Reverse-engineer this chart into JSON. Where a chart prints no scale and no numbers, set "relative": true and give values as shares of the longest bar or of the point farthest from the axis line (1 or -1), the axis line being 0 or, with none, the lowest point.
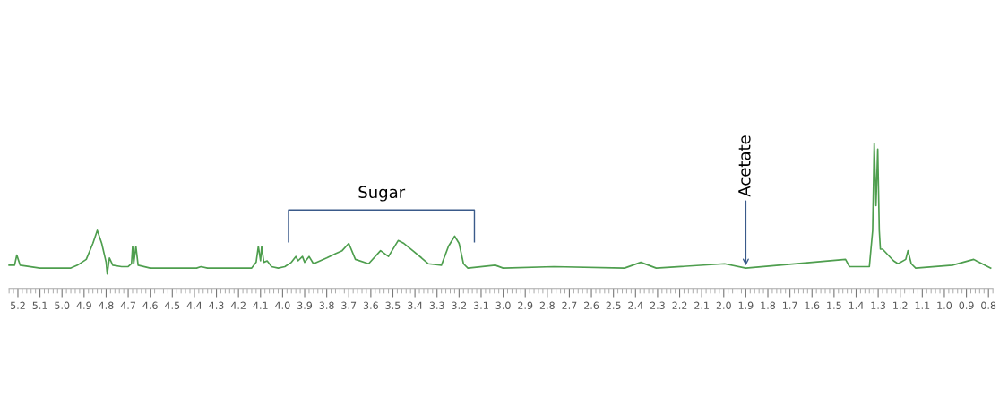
{
  "chart_data": {
    "type": "line",
    "relative": true,
    "xlim": [
      5.24,
      0.78
    ],
    "xticks": [
      5.2,
      5.1,
      {
        "value": 5,
        "label": "5.0"
      },
      4.9,
      4.8,
      4.7,
      4.6,
      4.5,
      4.4,
      4.3,
      4.2,
      4.1,
      {
        "value": 4,
        "label": "4.0"
      },
      3.9,
      3.8,
      3.7,
      3.6,
      3.5,
      3.4,
      3.3,
      3.2,
      3.1,
      {
        "value": 3,
        "label": "3.0"
      },
      2.9,
      2.8,
      2.7,
      2.6,
      2.5,
      2.4,
      2.3,
      2.2,
      2.1,
      {
        "value": 2,
        "label": "2.0"
      },
      1.9,
      1.8,
      1.7,
      1.6,
      1.5,
      1.4,
      1.3,
      1.2,
      1.1,
      {
        "value": 1,
        "label": "1.0"
      },
      0.9,
      0.8
    ],
    "grid": false,
    "legend": false,
    "marker": "none",
    "line_style": "solid",
    "series": [
      {
        "color": "#4e9e4e",
        "x": [
          5.24,
          5.215,
          5.205,
          5.19,
          5.1,
          4.96,
          4.93,
          4.89,
          4.86,
          4.84,
          4.82,
          4.8,
          4.795,
          4.785,
          4.77,
          4.73,
          4.7,
          4.685,
          4.68,
          4.675,
          4.665,
          4.655,
          4.6,
          4.39,
          4.37,
          4.34,
          4.14,
          4.12,
          4.11,
          4.1,
          4.095,
          4.085,
          4.07,
          4.05,
          4.02,
          3.99,
          3.96,
          3.94,
          3.93,
          3.91,
          3.9,
          3.88,
          3.86,
          3.8,
          3.76,
          3.73,
          3.7,
          3.67,
          3.61,
          3.556,
          3.52,
          3.476,
          3.45,
          3.41,
          3.37,
          3.34,
          3.28,
          3.248,
          3.22,
          3.2,
          3.18,
          3.16,
          3.036,
          3.0,
          2.77,
          2.45,
          2.376,
          2.306,
          1.996,
          1.9,
          1.448,
          1.43,
          1.34,
          1.325,
          1.318,
          1.31,
          1.302,
          1.295,
          1.29,
          1.28,
          1.23,
          1.21,
          1.175,
          1.165,
          1.15,
          1.13,
          0.964,
          0.867,
          0.855,
          0.79
        ],
        "values": [
          0.16,
          0.16,
          0.23,
          0.16,
          0.14,
          0.14,
          0.16,
          0.2,
          0.31,
          0.4,
          0.31,
          0.18,
          0.1,
          0.21,
          0.16,
          0.15,
          0.15,
          0.17,
          0.29,
          0.17,
          0.29,
          0.16,
          0.14,
          0.14,
          0.15,
          0.14,
          0.14,
          0.18,
          0.29,
          0.19,
          0.29,
          0.18,
          0.19,
          0.15,
          0.14,
          0.15,
          0.18,
          0.22,
          0.19,
          0.22,
          0.18,
          0.22,
          0.17,
          0.21,
          0.24,
          0.26,
          0.31,
          0.2,
          0.17,
          0.26,
          0.22,
          0.33,
          0.31,
          0.26,
          0.21,
          0.17,
          0.16,
          0.29,
          0.36,
          0.31,
          0.17,
          0.14,
          0.16,
          0.14,
          0.15,
          0.14,
          0.18,
          0.14,
          0.17,
          0.14,
          0.2,
          0.15,
          0.15,
          0.4,
          1.0,
          0.57,
          0.96,
          0.4,
          0.27,
          0.27,
          0.19,
          0.17,
          0.2,
          0.26,
          0.17,
          0.14,
          0.16,
          0.2,
          0.19,
          0.14
        ]
      }
    ],
    "annotations": [
      "Sugar",
      {
        "text": "Acetate",
        "x": 1.9,
        "y": 0.14
      }
    ]
  }
}
